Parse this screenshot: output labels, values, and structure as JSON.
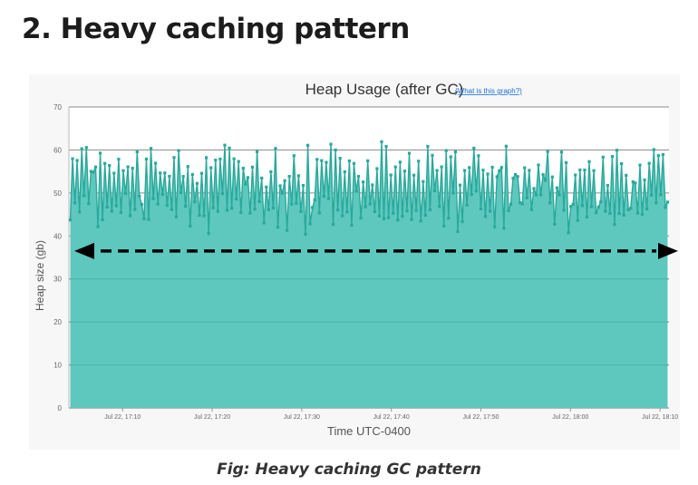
{
  "heading": "2. Heavy caching pattern",
  "caption": "Fig: Heavy caching GC pattern",
  "chart_data": {
    "type": "area",
    "title": "Heap Usage (after GC)",
    "help_link": "(What is this graph?)",
    "xlabel": "Time UTC-0400",
    "ylabel": "Heap size (gb)",
    "ylim": [
      0,
      70
    ],
    "yticks": [
      0,
      10,
      20,
      30,
      40,
      50,
      60,
      70
    ],
    "xlim": [
      "17:04",
      "18:11"
    ],
    "xticks": [
      {
        "time": "17:10",
        "label": "Jul 22, 17:10"
      },
      {
        "time": "17:20",
        "label": "Jul 22, 17:20"
      },
      {
        "time": "17:30",
        "label": "Jul 22, 17:30"
      },
      {
        "time": "17:40",
        "label": "Jul 22, 17:40"
      },
      {
        "time": "17:50",
        "label": "Jul 22, 17:50"
      },
      {
        "time": "18:00",
        "label": "Jul 22, 18:00"
      },
      {
        "time": "18:10",
        "label": "Jul 22, 18:10"
      }
    ],
    "grid": true,
    "legend": "none",
    "series": [
      {
        "color": "#2aa89a",
        "fill": "#5ec8bf",
        "band_low": 40,
        "band_high": 62,
        "typical_low": 44,
        "typical_high": 58
      }
    ],
    "annotation": {
      "type": "dashed double-headed arrow",
      "y": 36.5,
      "color": "#000000"
    }
  }
}
